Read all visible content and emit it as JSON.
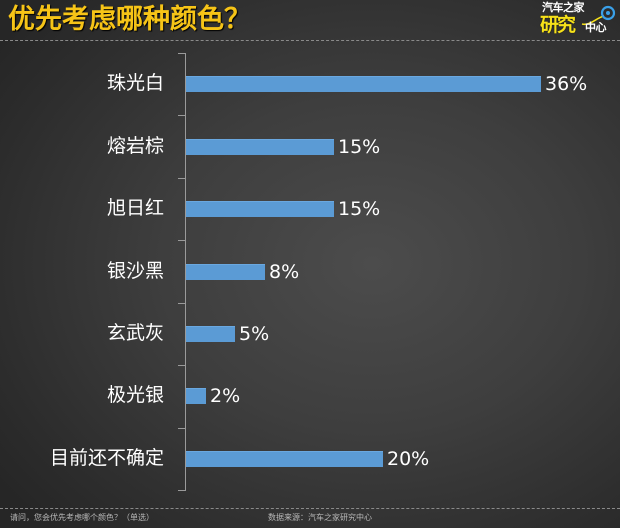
{
  "header": {
    "title": "优先考虑哪种颜色？",
    "logo": {
      "line1": "汽车之家",
      "line2": "研究",
      "line3": "中心",
      "icon": "swoosh-circle-icon"
    }
  },
  "footer": {
    "question": "请问，您会优先考虑哪个颜色？（单选）",
    "source": "数据来源：汽车之家研究中心"
  },
  "colors": {
    "title": "#f6c417",
    "bar": "#5b9bd5",
    "background_center": "#4c4c4c",
    "background_edge": "#262626",
    "text": "#ffffff"
  },
  "chart_data": {
    "type": "bar",
    "orientation": "horizontal",
    "title": "优先考虑哪种颜色？",
    "xlabel": "",
    "ylabel": "",
    "categories": [
      "珠光白",
      "熔岩棕",
      "旭日红",
      "银沙黑",
      "玄武灰",
      "极光银",
      "目前还不确定"
    ],
    "values": [
      36,
      15,
      15,
      8,
      5,
      2,
      20
    ],
    "value_labels": [
      "36%",
      "15%",
      "15%",
      "8%",
      "5%",
      "2%",
      "20%"
    ],
    "unit": "%",
    "grid": false,
    "legend": null,
    "xlim": [
      0,
      36
    ]
  }
}
